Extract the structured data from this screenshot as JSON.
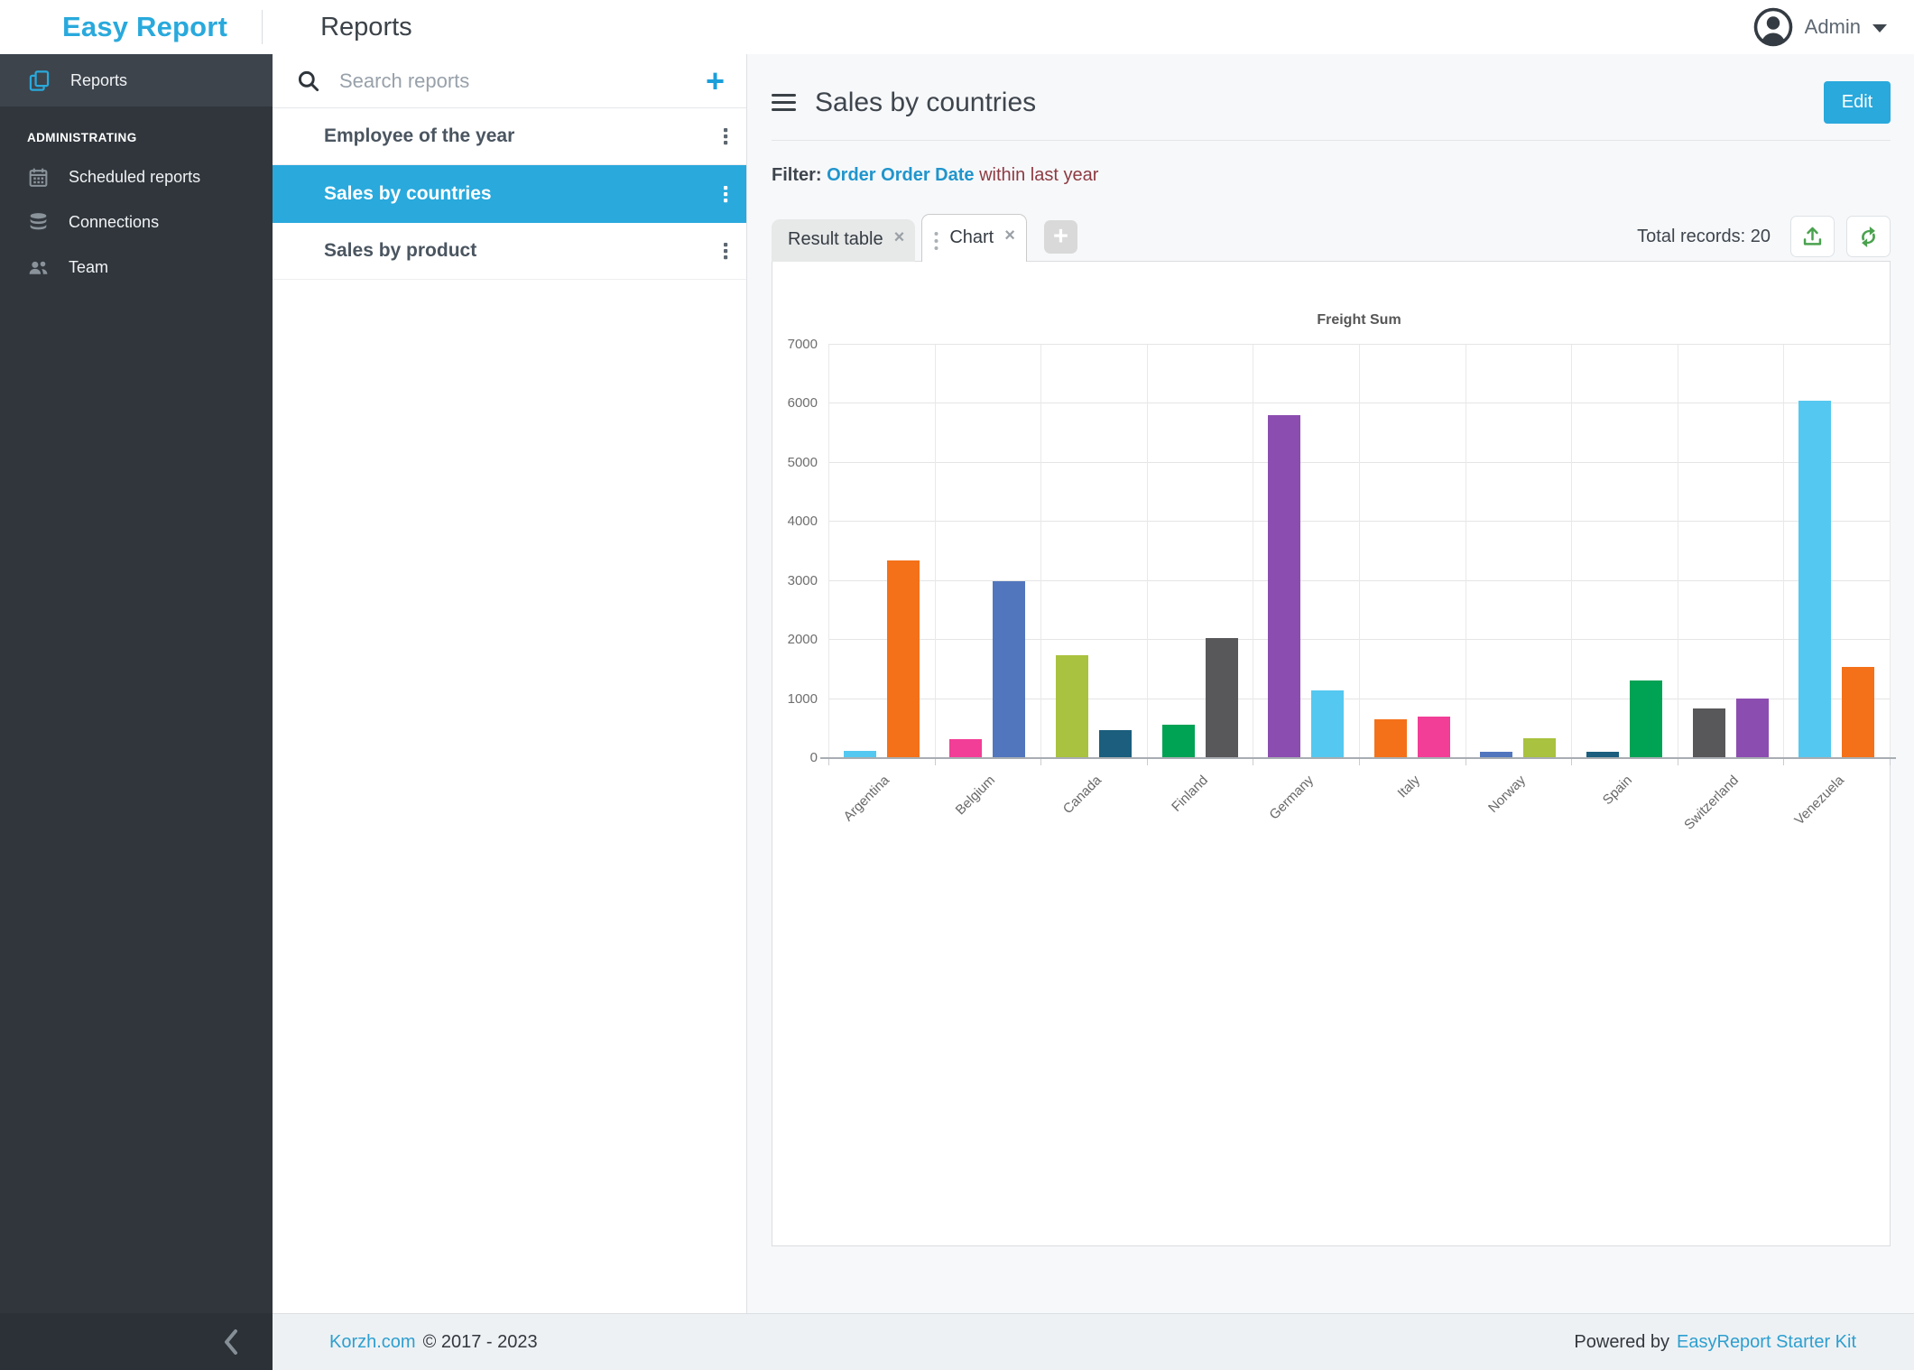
{
  "header": {
    "logo": "Easy Report",
    "page_title": "Reports",
    "user": "Admin"
  },
  "sidebar": {
    "items": [
      {
        "label": "Reports",
        "icon": "copy-pages-icon",
        "active": true
      }
    ],
    "section_label": "ADMINISTRATING",
    "admin_items": [
      {
        "label": "Scheduled reports",
        "icon": "calendar-icon"
      },
      {
        "label": "Connections",
        "icon": "database-icon"
      },
      {
        "label": "Team",
        "icon": "users-icon"
      }
    ]
  },
  "reports_panel": {
    "search_placeholder": "Search reports",
    "items": [
      {
        "label": "Employee of the year",
        "selected": false
      },
      {
        "label": "Sales by countries",
        "selected": true
      },
      {
        "label": "Sales by product",
        "selected": false
      }
    ]
  },
  "main": {
    "title": "Sales by countries",
    "edit_button": "Edit",
    "filter": {
      "label": "Filter:",
      "field": "Order Order Date",
      "condition": "within last year"
    },
    "tabs": [
      {
        "label": "Result table",
        "active": false
      },
      {
        "label": "Chart",
        "active": true
      }
    ],
    "total_records": "Total records: 20"
  },
  "icons": {
    "close_glyph": "×",
    "plus_glyph": "+"
  },
  "colors": {
    "brand_blue": "#29A9DC",
    "filter_field_blue": "#2095CC",
    "filter_condition_maroon": "#8C3B42",
    "footer_link_blue": "#2D9FD0",
    "toolbar_icon_green": "#4AA24E"
  },
  "chart_data": {
    "type": "bar",
    "title": "Freight Sum",
    "categories": [
      "Argentina",
      "Belgium",
      "Canada",
      "Finland",
      "Germany",
      "Italy",
      "Norway",
      "Spain",
      "Switzerland",
      "Venezuela"
    ],
    "values_per_category": [
      [
        130,
        3350
      ],
      [
        320,
        3000
      ],
      [
        1740,
        480
      ],
      [
        560,
        2030
      ],
      [
        5810,
        1140
      ],
      [
        650,
        700
      ],
      [
        100,
        330
      ],
      [
        110,
        1310
      ],
      [
        840,
        1010
      ],
      [
        6050,
        1550
      ]
    ],
    "bars_total": 20,
    "ylim": [
      0,
      7000
    ],
    "y_ticks": [
      0,
      1000,
      2000,
      3000,
      4000,
      5000,
      6000,
      7000
    ],
    "palette": [
      "#54C8F0",
      "#F47119",
      "#F23E96",
      "#5276BD",
      "#A9C23F",
      "#1B5E7D",
      "#00A254",
      "#58585A",
      "#8C4DB0"
    ],
    "color_mode": "cycle-per-bar",
    "grid": true,
    "x_label_rotation": -45,
    "legend": "none"
  },
  "footer": {
    "site_link": "Korzh.com",
    "copyright": "© 2017 - 2023",
    "powered_by": "Powered by",
    "product_link": "EasyReport Starter Kit"
  }
}
